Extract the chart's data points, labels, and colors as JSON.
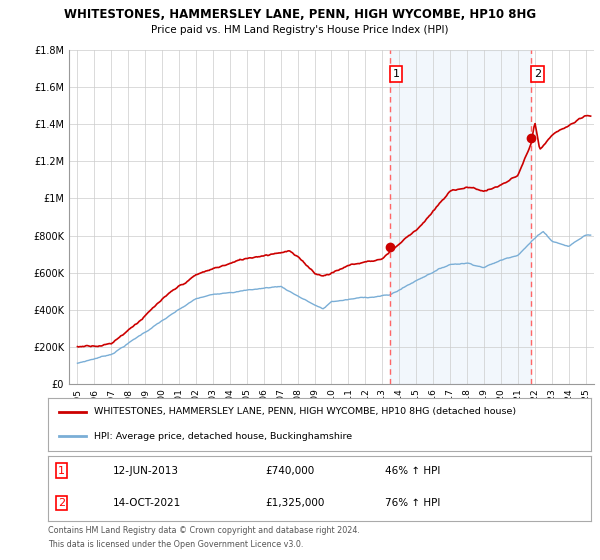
{
  "title": "WHITESTONES, HAMMERSLEY LANE, PENN, HIGH WYCOMBE, HP10 8HG",
  "subtitle": "Price paid vs. HM Land Registry's House Price Index (HPI)",
  "red_label": "WHITESTONES, HAMMERSLEY LANE, PENN, HIGH WYCOMBE, HP10 8HG (detached house)",
  "blue_label": "HPI: Average price, detached house, Buckinghamshire",
  "sale1_date": "12-JUN-2013",
  "sale1_price": "£740,000",
  "sale1_hpi": "46% ↑ HPI",
  "sale2_date": "14-OCT-2021",
  "sale2_price": "£1,325,000",
  "sale2_hpi": "76% ↑ HPI",
  "footer": "Contains HM Land Registry data © Crown copyright and database right 2024.\nThis data is licensed under the Open Government Licence v3.0.",
  "ylim": [
    0,
    1800000
  ],
  "xlim_start": 1994.5,
  "xlim_end": 2025.5,
  "vline1_x": 2013.45,
  "vline2_x": 2021.79,
  "background_color": "#ffffff",
  "grid_color": "#cccccc",
  "red_color": "#cc0000",
  "blue_color": "#7aaed6",
  "fill_color": "#ddeeff"
}
